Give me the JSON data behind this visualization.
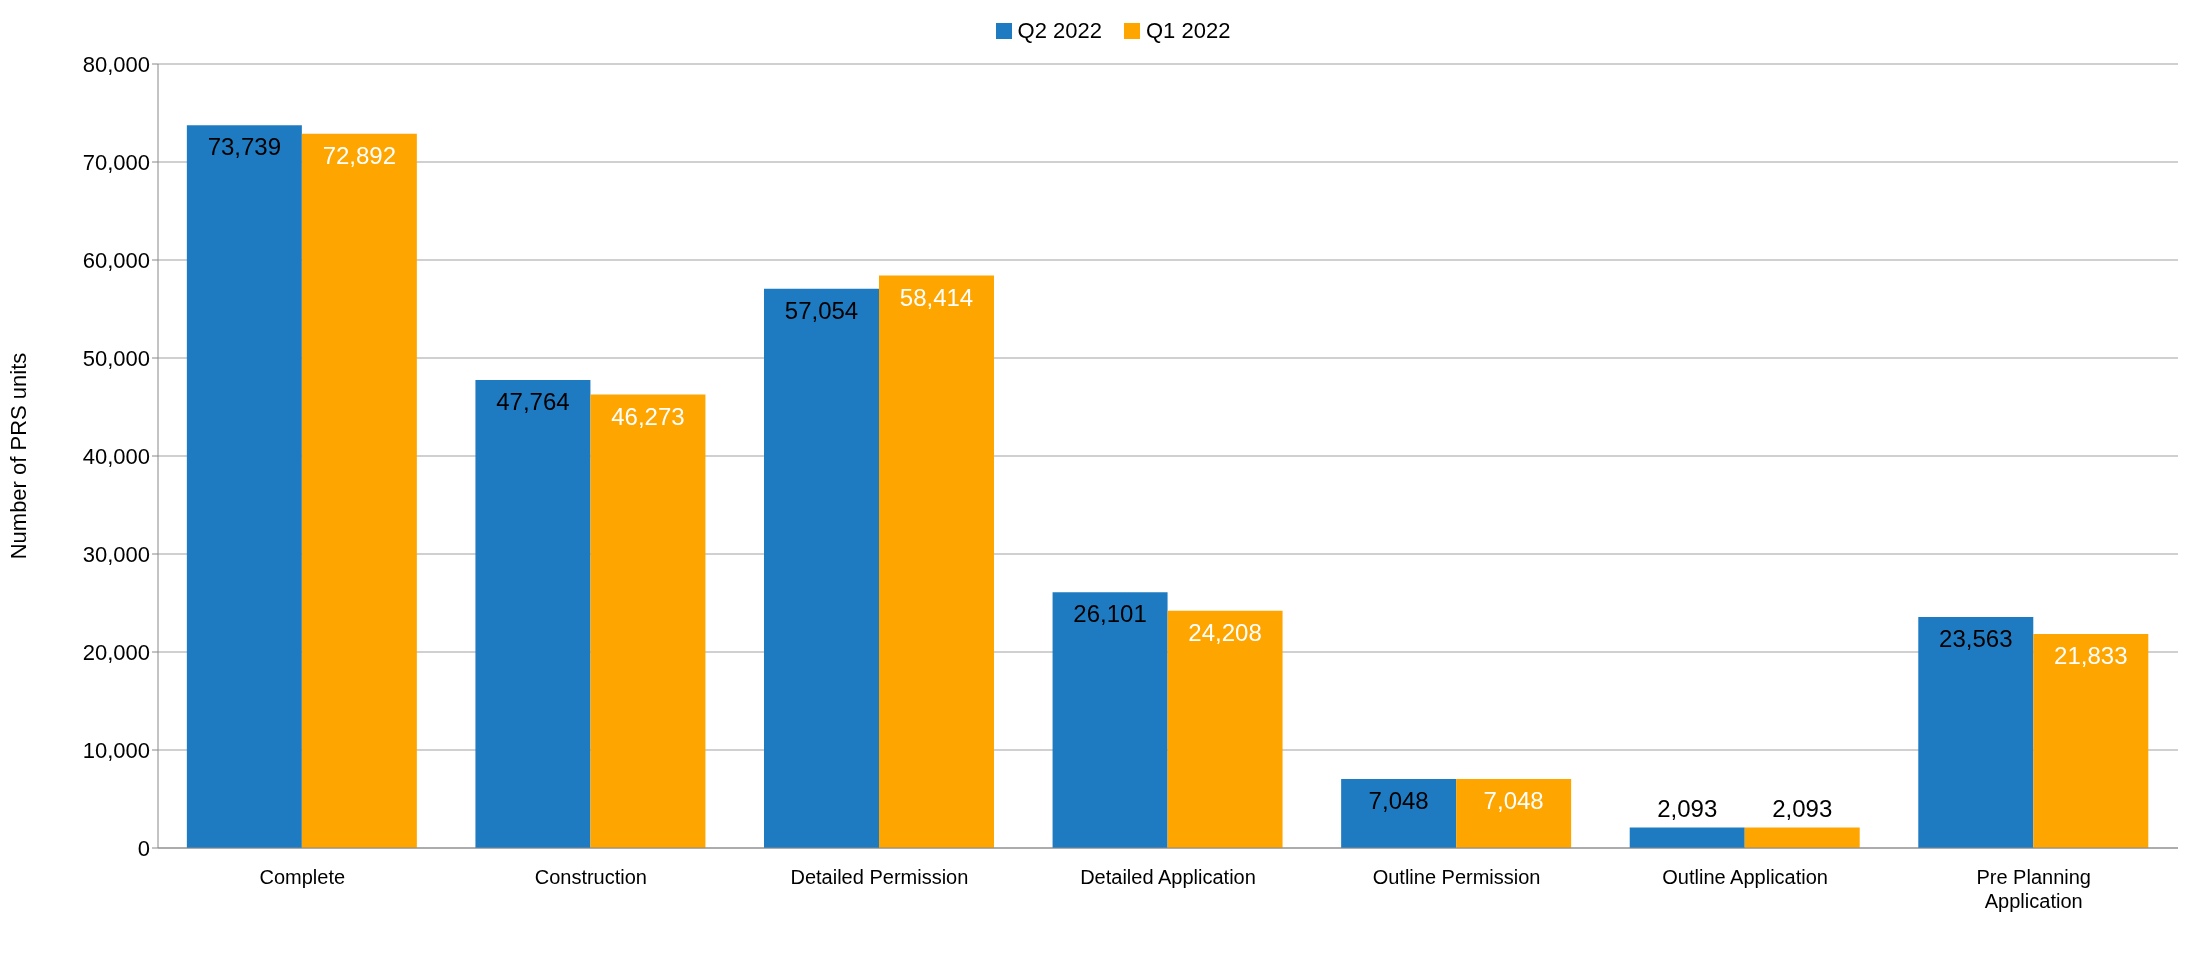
{
  "chart_data": {
    "type": "bar",
    "ylabel": "Number of PRS units",
    "categories": [
      "Complete",
      "Construction",
      "Detailed Permission",
      "Detailed Application",
      "Outline Permission",
      "Outline Application",
      "Pre Planning Application"
    ],
    "series": [
      {
        "name": "Q2 2022",
        "color": "#1f7bc1",
        "values": [
          73739,
          47764,
          57054,
          26101,
          7048,
          2093,
          23563
        ],
        "value_labels": [
          "73,739",
          "47,764",
          "57,054",
          "26,101",
          "7,048",
          "2,093",
          "23,563"
        ]
      },
      {
        "name": "Q1 2022",
        "color": "#ffa500",
        "values": [
          72892,
          46273,
          58414,
          24208,
          7048,
          2093,
          21833
        ],
        "value_labels": [
          "72,892",
          "46,273",
          "58,414",
          "24,208",
          "7,048",
          "2,093",
          "21,833"
        ]
      }
    ],
    "ylim": [
      0,
      80000
    ],
    "yticks": [
      0,
      {
        "value": 10000,
        "label": "10,000"
      },
      {
        "value": 20000,
        "label": "20,000"
      },
      {
        "value": 30000,
        "label": "30,000"
      },
      {
        "value": 40000,
        "label": "40,000"
      },
      {
        "value": 50000,
        "label": "50,000"
      },
      {
        "value": 60000,
        "label": "60,000"
      },
      {
        "value": 70000,
        "label": "70,000"
      },
      {
        "value": 80000,
        "label": "80,000"
      }
    ],
    "grid": "y",
    "legend": "top"
  }
}
